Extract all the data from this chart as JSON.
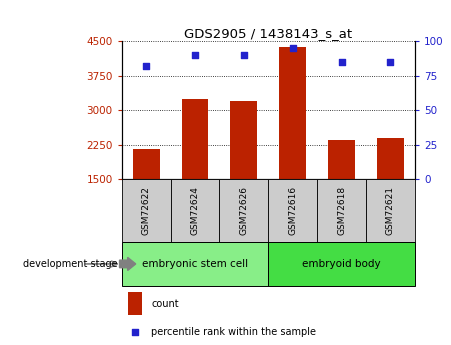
{
  "title": "GDS2905 / 1438143_s_at",
  "samples": [
    "GSM72622",
    "GSM72624",
    "GSM72626",
    "GSM72616",
    "GSM72618",
    "GSM72621"
  ],
  "counts": [
    2170,
    3250,
    3210,
    4380,
    2360,
    2390
  ],
  "percentiles": [
    82,
    90,
    90,
    95,
    85,
    85
  ],
  "ylim_left": [
    1500,
    4500
  ],
  "ylim_right": [
    0,
    100
  ],
  "yticks_left": [
    1500,
    2250,
    3000,
    3750,
    4500
  ],
  "yticks_right": [
    0,
    25,
    50,
    75,
    100
  ],
  "bar_color": "#bb2200",
  "dot_color": "#2222cc",
  "grid_color": "#000000",
  "groups": [
    {
      "label": "embryonic stem cell",
      "n": 3,
      "color": "#88ee88"
    },
    {
      "label": "embryoid body",
      "n": 3,
      "color": "#44dd44"
    }
  ],
  "stage_label": "development stage",
  "legend_count": "count",
  "legend_percentile": "percentile rank within the sample",
  "tick_bg_color": "#cccccc",
  "white": "#ffffff"
}
